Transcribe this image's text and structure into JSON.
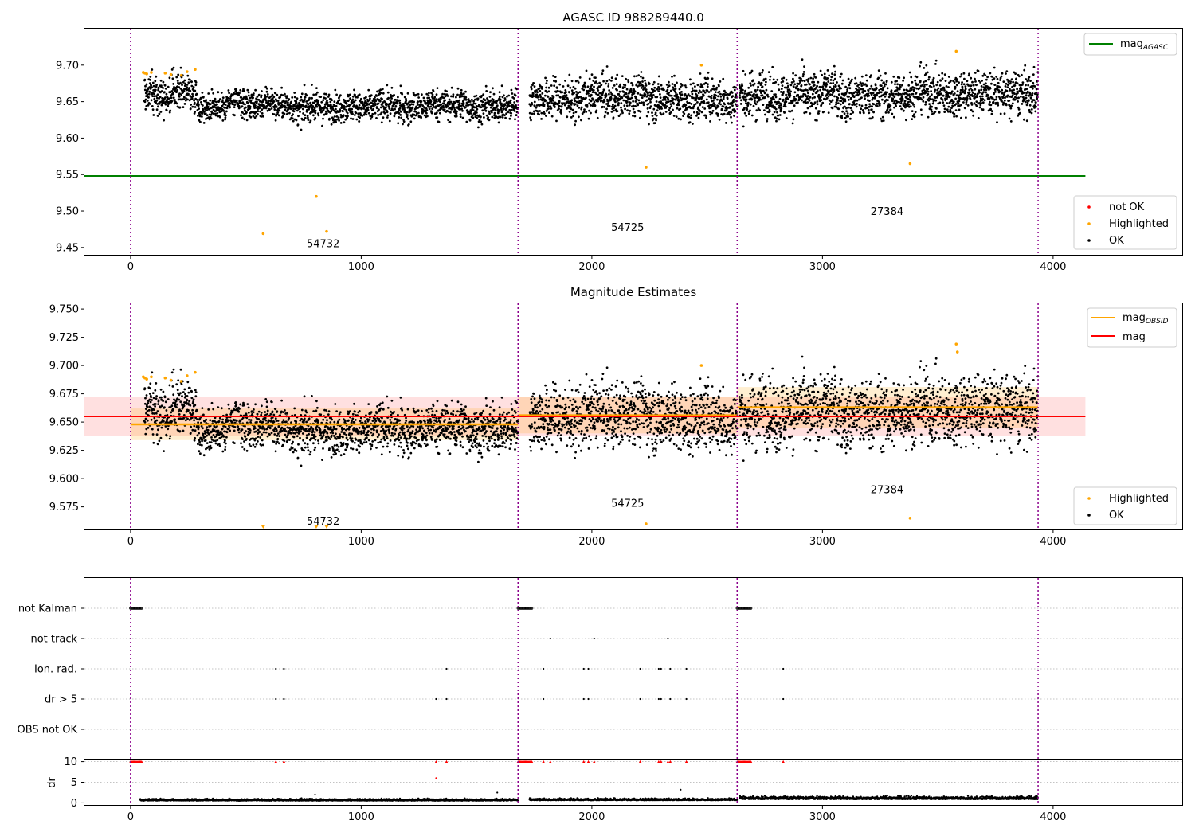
{
  "colors": {
    "ok": "#000000",
    "highlighted": "#ffa500",
    "not_ok": "#ff0000",
    "agasc": "#008000",
    "mag": "#ff0000",
    "obsid": "#ffa500",
    "vline": "#8b008b"
  },
  "chart_data": [
    {
      "type": "scatter",
      "title": "AGASC ID 988289440.0",
      "xlim": [
        -200,
        4560
      ],
      "ylim": [
        9.44,
        9.75
      ],
      "xticks": [
        "0",
        "1000",
        "2000",
        "3000",
        "4000"
      ],
      "yticks": [
        "9.45",
        "9.50",
        "9.55",
        "9.60",
        "9.65",
        "9.70"
      ],
      "obsid_boundaries": [
        0,
        1680,
        2630,
        3935
      ],
      "obsid_labels": [
        {
          "text": "54732",
          "x": 835,
          "y": 9.455
        },
        {
          "text": "54725",
          "x": 2155,
          "y": 9.477
        },
        {
          "text": "27384",
          "x": 3280,
          "y": 9.499
        }
      ],
      "agasc_mag": 9.548,
      "agasc_x_range": [
        -200,
        4140
      ],
      "ok_segments": [
        {
          "x_start": 60,
          "x_end": 290,
          "mean": 9.662,
          "spread": 0.012
        },
        {
          "x_start": 290,
          "x_end": 1680,
          "mean": 9.645,
          "spread": 0.01
        },
        {
          "x_start": 1730,
          "x_end": 2630,
          "mean": 9.655,
          "spread": 0.014
        },
        {
          "x_start": 2640,
          "x_end": 3935,
          "mean": 9.66,
          "spread": 0.015
        }
      ],
      "highlighted_points": [
        [
          55,
          9.69
        ],
        [
          62,
          9.689
        ],
        [
          70,
          9.688
        ],
        [
          90,
          9.69
        ],
        [
          150,
          9.689
        ],
        [
          175,
          9.687
        ],
        [
          220,
          9.686
        ],
        [
          245,
          9.691
        ],
        [
          280,
          9.694
        ],
        [
          575,
          9.469
        ],
        [
          805,
          9.52
        ],
        [
          850,
          9.472
        ],
        [
          2235,
          9.56
        ],
        [
          2475,
          9.7
        ],
        [
          3380,
          9.565
        ],
        [
          3580,
          9.719
        ]
      ],
      "legend_upper": [
        {
          "label": "mag",
          "sub": "AGASC",
          "color": "#008000"
        }
      ],
      "legend_lower": [
        {
          "label": "not OK",
          "color": "#ff0000"
        },
        {
          "label": "Highlighted",
          "color": "#ffa500"
        },
        {
          "label": "OK",
          "color": "#000000"
        }
      ]
    },
    {
      "type": "scatter",
      "title": "Magnitude Estimates",
      "xlim": [
        -200,
        4560
      ],
      "ylim": [
        9.555,
        9.755
      ],
      "xticks": [
        "0",
        "1000",
        "2000",
        "3000",
        "4000"
      ],
      "yticks": [
        "9.575",
        "9.600",
        "9.625",
        "9.650",
        "9.675",
        "9.700",
        "9.725",
        "9.750"
      ],
      "obsid_boundaries": [
        0,
        1680,
        2630,
        3935
      ],
      "obsid_labels": [
        {
          "text": "54732",
          "x": 835,
          "y": 9.562
        },
        {
          "text": "54725",
          "x": 2155,
          "y": 9.578
        },
        {
          "text": "27384",
          "x": 3280,
          "y": 9.59
        }
      ],
      "mag": {
        "value": 9.655,
        "band": [
          9.638,
          9.672
        ],
        "x_range": [
          -200,
          4140
        ]
      },
      "obsid_mags": [
        {
          "x_start": 0,
          "x_end": 1680,
          "value": 9.648,
          "band": [
            9.634,
            9.662
          ]
        },
        {
          "x_start": 1680,
          "x_end": 2630,
          "value": 9.656,
          "band": [
            9.64,
            9.672
          ]
        },
        {
          "x_start": 2630,
          "x_end": 3935,
          "value": 9.663,
          "band": [
            9.645,
            9.681
          ]
        }
      ],
      "ok_segments": [
        {
          "x_start": 60,
          "x_end": 290,
          "mean": 9.662,
          "spread": 0.012
        },
        {
          "x_start": 290,
          "x_end": 1680,
          "mean": 9.645,
          "spread": 0.01
        },
        {
          "x_start": 1730,
          "x_end": 2630,
          "mean": 9.655,
          "spread": 0.014
        },
        {
          "x_start": 2640,
          "x_end": 3935,
          "mean": 9.66,
          "spread": 0.015
        }
      ],
      "highlighted_points": [
        [
          55,
          9.69
        ],
        [
          62,
          9.689
        ],
        [
          70,
          9.688
        ],
        [
          90,
          9.69
        ],
        [
          150,
          9.689
        ],
        [
          175,
          9.687
        ],
        [
          220,
          9.686
        ],
        [
          245,
          9.691
        ],
        [
          280,
          9.694
        ],
        [
          2235,
          9.56
        ],
        [
          2475,
          9.7
        ],
        [
          3380,
          9.565
        ],
        [
          3580,
          9.719
        ],
        [
          3585,
          9.712
        ]
      ],
      "clipped_low_x": [
        575,
        805,
        850
      ],
      "legend_upper": [
        {
          "label": "mag",
          "sub": "OBSID",
          "color": "#ffa500"
        },
        {
          "label": "mag",
          "sub": "",
          "color": "#ff0000"
        }
      ],
      "legend_lower": [
        {
          "label": "Highlighted",
          "color": "#ffa500"
        },
        {
          "label": "OK",
          "color": "#000000"
        }
      ]
    },
    {
      "type": "scatter",
      "xlim": [
        -200,
        4560
      ],
      "xticks": [
        "0",
        "1000",
        "2000",
        "3000",
        "4000"
      ],
      "obsid_boundaries": [
        0,
        1680,
        2630,
        3935
      ],
      "flag_labels": [
        "not Kalman",
        "not track",
        "Ion. rad.",
        "dr > 5",
        "OBS not OK"
      ],
      "flags": {
        "not Kalman": [
          [
            0,
            50
          ],
          [
            1680,
            1740
          ],
          [
            2630,
            2690
          ]
        ],
        "not track": [
          1820,
          2010,
          2330
        ],
        "Ion. rad.": [
          630,
          665,
          1370,
          1790,
          1965,
          1985,
          2210,
          2290,
          2300,
          2340,
          2410,
          2830
        ],
        "dr > 5": [
          630,
          665,
          1325,
          1370,
          1790,
          1965,
          1985,
          2210,
          2290,
          2300,
          2340,
          2410,
          2830
        ],
        "OBS not OK": []
      },
      "dr": {
        "ylabel": "dr",
        "yticks": [
          "0",
          "5",
          "10"
        ],
        "ylim": [
          -0.5,
          10.5
        ],
        "segments": [
          {
            "x_start": 40,
            "x_end": 1680,
            "mean": 0.6,
            "spread": 0.25
          },
          {
            "x_start": 1730,
            "x_end": 2630,
            "mean": 0.7,
            "spread": 0.25
          },
          {
            "x_start": 2640,
            "x_end": 3935,
            "mean": 1.0,
            "spread": 0.4
          }
        ],
        "outliers": [
          [
            800,
            2.0
          ],
          [
            1325,
            6.0
          ],
          [
            1590,
            2.5
          ],
          [
            2385,
            3.2
          ]
        ]
      }
    }
  ]
}
